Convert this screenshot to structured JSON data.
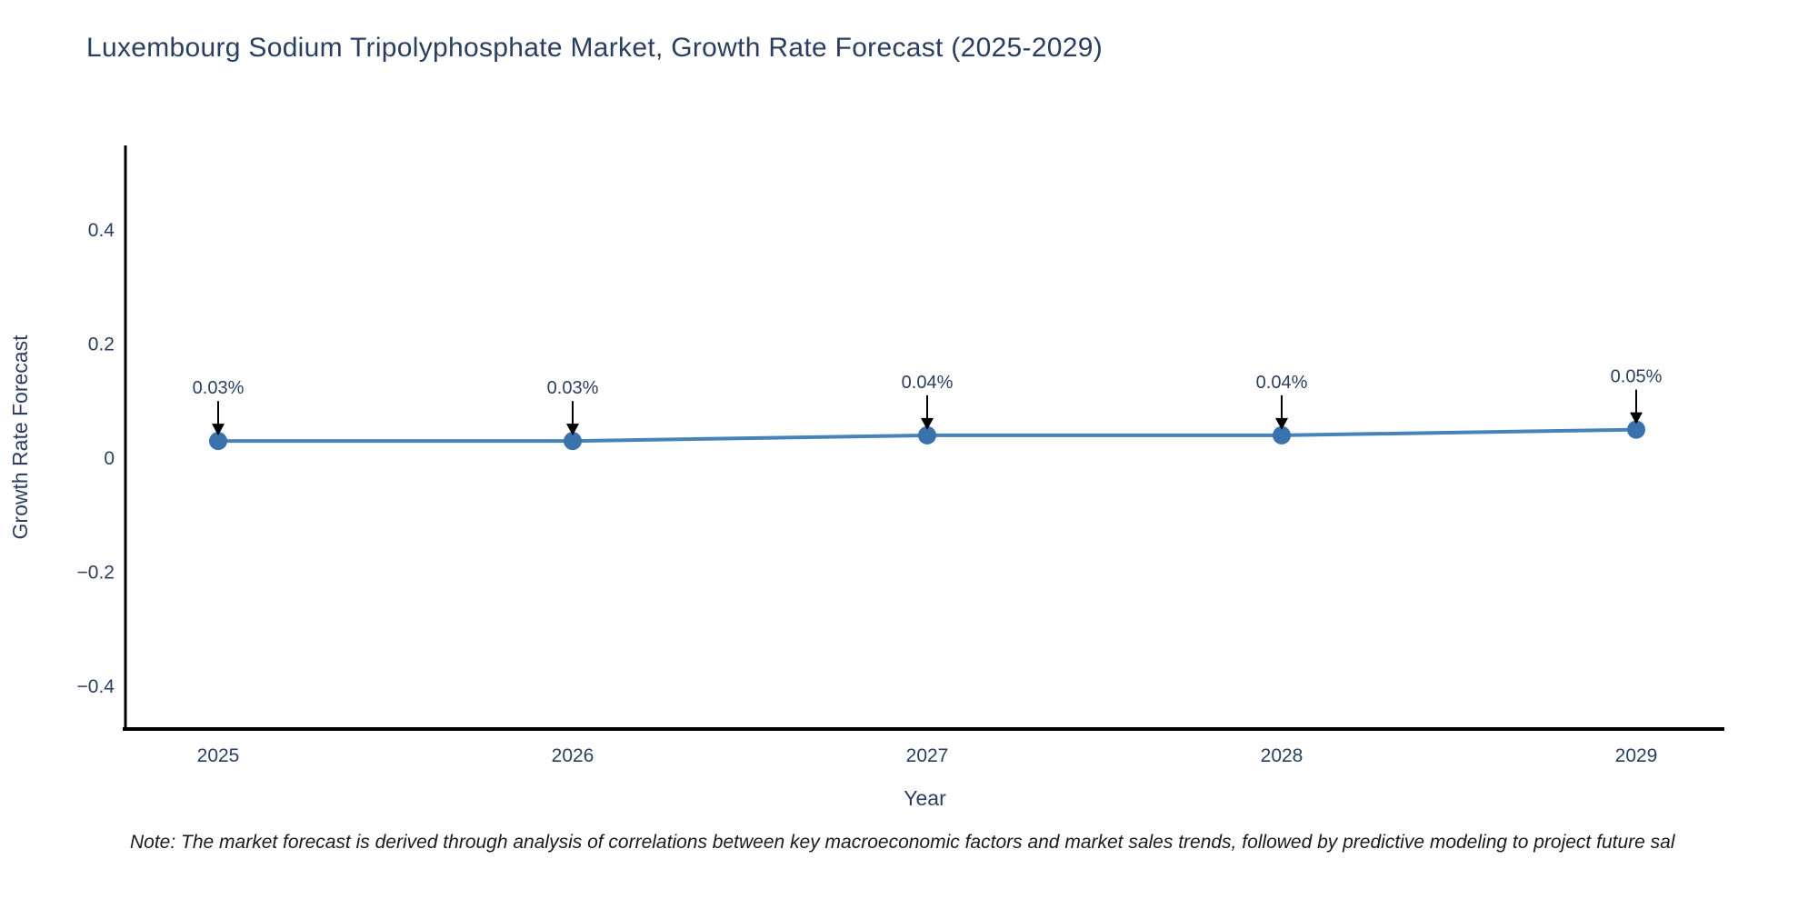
{
  "chart_data": {
    "type": "line",
    "title": "Luxembourg Sodium Tripolyphosphate Market, Growth Rate Forecast (2025-2029)",
    "xlabel": "Year",
    "ylabel": "Growth Rate Forecast",
    "x": [
      2025,
      2026,
      2027,
      2028,
      2029
    ],
    "y": [
      0.03,
      0.03,
      0.04,
      0.04,
      0.05
    ],
    "point_labels": [
      "0.03%",
      "0.03%",
      "0.04%",
      "0.04%",
      "0.05%"
    ],
    "yticks": [
      0.4,
      0.2,
      0,
      -0.2,
      -0.4
    ],
    "ylim": [
      -0.475,
      0.548
    ],
    "grid": false,
    "legend": false,
    "note": "Note: The market forecast is derived through analysis of correlations between key macroeconomic factors and market sales trends, followed by predictive modeling to project future sal",
    "colors": {
      "line": "#4783b8",
      "marker": "#3a72ab",
      "arrow": "#000000",
      "axis": "#000000",
      "text": "#2a3f5f",
      "note_text": "#1a1a1a"
    }
  }
}
